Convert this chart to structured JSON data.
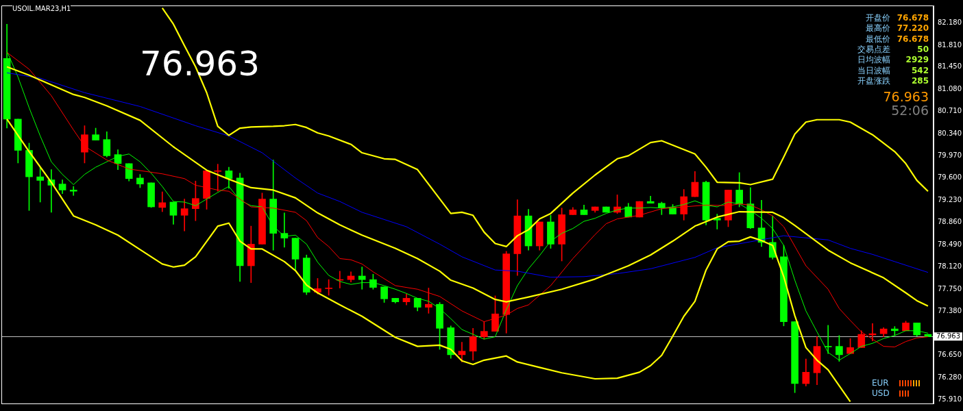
{
  "chart_data": {
    "type": "candlestick",
    "title": "USOIL.MAR23,H1",
    "legend": false,
    "tick_labels": "y",
    "categories": [
      null,
      null,
      null,
      null,
      null,
      null,
      null,
      null,
      null,
      null,
      null,
      null,
      null,
      null,
      null,
      null,
      null,
      null,
      null,
      null,
      null,
      null,
      null,
      null,
      null,
      null,
      null,
      null,
      null,
      null,
      null,
      null,
      null,
      null,
      null,
      null,
      null,
      null,
      null,
      null,
      null,
      null,
      null,
      null,
      null,
      null,
      null,
      null,
      null,
      null,
      null,
      null,
      null,
      null,
      null,
      null,
      null,
      null,
      null,
      null,
      null,
      null,
      null,
      null,
      null,
      null,
      null,
      null,
      null,
      null,
      null,
      null,
      null,
      null,
      null,
      null,
      null,
      null,
      null,
      null,
      null,
      null,
      null,
      null
    ],
    "ohlc": [
      [
        81.59,
        82.16,
        80.43,
        80.58
      ],
      [
        80.58,
        80.58,
        79.85,
        80.06
      ],
      [
        80.06,
        80.18,
        79.06,
        79.62
      ],
      [
        79.62,
        79.78,
        79.2,
        79.56
      ],
      [
        79.57,
        79.74,
        79.03,
        79.48
      ],
      [
        79.5,
        79.57,
        79.34,
        79.4
      ],
      [
        79.4,
        79.46,
        79.31,
        79.38
      ],
      [
        80.03,
        80.47,
        79.85,
        80.32
      ],
      [
        80.32,
        80.43,
        80.23,
        80.23
      ],
      [
        80.24,
        80.37,
        79.95,
        79.97
      ],
      [
        79.99,
        80.07,
        79.74,
        79.84
      ],
      [
        79.84,
        79.84,
        79.55,
        79.59
      ],
      [
        79.6,
        79.66,
        79.44,
        79.5
      ],
      [
        79.52,
        79.52,
        79.11,
        79.12
      ],
      [
        79.11,
        79.37,
        79.04,
        79.19
      ],
      [
        79.2,
        79.2,
        78.83,
        78.98
      ],
      [
        78.98,
        79.25,
        78.72,
        79.09
      ],
      [
        79.09,
        79.55,
        78.89,
        79.26
      ],
      [
        79.26,
        79.72,
        79.08,
        79.72
      ],
      [
        79.71,
        79.83,
        79.38,
        79.72
      ],
      [
        79.72,
        79.78,
        79.43,
        79.59
      ],
      [
        79.6,
        79.68,
        77.88,
        78.14
      ],
      [
        78.14,
        78.8,
        77.86,
        78.5
      ],
      [
        78.5,
        79.35,
        78.5,
        79.25
      ],
      [
        79.25,
        79.9,
        78.4,
        78.68
      ],
      [
        78.68,
        79.02,
        78.45,
        78.6
      ],
      [
        78.6,
        78.6,
        78.07,
        78.25
      ],
      [
        78.27,
        78.32,
        77.66,
        77.7
      ],
      [
        77.7,
        77.93,
        77.67,
        77.76
      ],
      [
        77.76,
        77.91,
        77.65,
        77.77
      ],
      [
        77.9,
        78.05,
        77.77,
        77.91
      ],
      [
        77.91,
        78.04,
        77.87,
        77.97
      ],
      [
        77.97,
        78.12,
        77.75,
        77.91
      ],
      [
        77.91,
        78.0,
        77.75,
        77.78
      ],
      [
        77.79,
        77.79,
        77.53,
        77.59
      ],
      [
        77.6,
        77.6,
        77.52,
        77.54
      ],
      [
        77.54,
        77.67,
        77.49,
        77.6
      ],
      [
        77.6,
        77.6,
        77.39,
        77.45
      ],
      [
        77.45,
        77.77,
        77.35,
        77.5
      ],
      [
        77.5,
        77.53,
        76.75,
        77.1
      ],
      [
        77.11,
        77.14,
        76.6,
        76.66
      ],
      [
        76.66,
        76.87,
        76.54,
        76.72
      ],
      [
        76.72,
        77.1,
        76.57,
        76.96
      ],
      [
        76.96,
        77.21,
        76.92,
        77.05
      ],
      [
        77.05,
        77.64,
        77.05,
        77.34
      ],
      [
        77.33,
        78.38,
        77.02,
        78.34
      ],
      [
        78.34,
        79.24,
        77.98,
        78.97
      ],
      [
        78.97,
        79.08,
        78.4,
        78.47
      ],
      [
        78.47,
        78.87,
        78.4,
        78.87
      ],
      [
        78.87,
        78.98,
        78.43,
        78.5
      ],
      [
        78.5,
        79.1,
        78.22,
        78.99
      ],
      [
        78.99,
        79.11,
        78.99,
        79.07
      ],
      [
        79.07,
        79.15,
        78.99,
        78.99
      ],
      [
        79.06,
        79.12,
        79.03,
        79.12
      ],
      [
        79.12,
        79.12,
        79.03,
        79.03
      ],
      [
        79.03,
        79.32,
        79.01,
        79.12
      ],
      [
        79.12,
        79.18,
        78.95,
        78.95
      ],
      [
        78.95,
        79.21,
        78.95,
        79.21
      ],
      [
        79.21,
        79.3,
        79.18,
        79.18
      ],
      [
        79.18,
        79.2,
        78.99,
        79.11
      ],
      [
        79.11,
        79.16,
        79.0,
        79.0
      ],
      [
        79.0,
        79.41,
        78.9,
        79.29
      ],
      [
        79.29,
        79.71,
        79.29,
        79.53
      ],
      [
        79.53,
        79.55,
        78.82,
        78.9
      ],
      [
        78.93,
        79.0,
        78.75,
        78.9
      ],
      [
        78.9,
        79.4,
        78.79,
        79.4
      ],
      [
        79.4,
        79.69,
        79.12,
        79.17
      ],
      [
        79.17,
        79.44,
        78.76,
        78.77
      ],
      [
        78.77,
        79.23,
        78.46,
        78.53
      ],
      [
        78.53,
        78.97,
        78.25,
        78.28
      ],
      [
        78.29,
        78.48,
        77.14,
        77.21
      ],
      [
        77.21,
        77.21,
        76.03,
        76.18
      ],
      [
        76.18,
        76.59,
        76.14,
        76.37
      ],
      [
        76.36,
        76.96,
        76.16,
        76.8
      ],
      [
        76.8,
        77.15,
        76.68,
        76.79
      ],
      [
        76.8,
        76.98,
        76.55,
        76.66
      ],
      [
        76.68,
        76.93,
        76.68,
        76.78
      ],
      [
        76.78,
        77.06,
        76.78,
        77.0
      ],
      [
        76.99,
        77.18,
        76.89,
        77.01
      ],
      [
        77.01,
        77.11,
        76.96,
        77.09
      ],
      [
        77.09,
        77.13,
        76.98,
        77.06
      ],
      [
        77.06,
        77.22,
        77.06,
        77.19
      ],
      [
        77.19,
        77.19,
        76.97,
        76.99
      ],
      [
        77.0,
        77.0,
        76.96,
        76.96
      ]
    ],
    "colors": [
      "#00ff00",
      "#00ff00",
      "#00ff00",
      "#00ff00",
      "#00ff00",
      "#00ff00",
      "#00ff00",
      "#ff0000",
      "#00ff00",
      "#00ff00",
      "#00ff00",
      "#00ff00",
      "#00ff00",
      "#00ff00",
      "#ff0000",
      "#00ff00",
      "#ff0000",
      "#ff0000",
      "#ff0000",
      "#ff0000",
      "#00ff00",
      "#00ff00",
      "#ff0000",
      "#ff0000",
      "#00ff00",
      "#00ff00",
      "#00ff00",
      "#00ff00",
      "#ff0000",
      "#ff0000",
      "#ff0000",
      "#ff0000",
      "#00ff00",
      "#00ff00",
      "#00ff00",
      "#00ff00",
      "#ff0000",
      "#00ff00",
      "#ff0000",
      "#00ff00",
      "#00ff00",
      "#ff0000",
      "#ff0000",
      "#ff0000",
      "#ff0000",
      "#ff0000",
      "#ff0000",
      "#00ff00",
      "#ff0000",
      "#00ff00",
      "#ff0000",
      "#ff0000",
      "#00ff00",
      "#ff0000",
      "#00ff00",
      "#ff0000",
      "#00ff00",
      "#ff0000",
      "#00ff00",
      "#00ff00",
      "#00ff00",
      "#ff0000",
      "#ff0000",
      "#00ff00",
      "#00ff00",
      "#ff0000",
      "#00ff00",
      "#00ff00",
      "#00ff00",
      "#00ff00",
      "#00ff00",
      "#00ff00",
      "#ff0000",
      "#ff0000",
      "#00ff00",
      "#00ff00",
      "#ff0000",
      "#ff0000",
      "#ff0000",
      "#ff0000",
      "#00ff00",
      "#ff0000",
      "#00ff00",
      "#00ff00"
    ],
    "series": [
      {
        "type": "line",
        "color": "#ffff00",
        "values": [
          null,
          null,
          null,
          null,
          null,
          null,
          null,
          null,
          null,
          null,
          null,
          null,
          null,
          null,
          82.43,
          82.16,
          81.8,
          81.45,
          81.02,
          80.46,
          80.31,
          80.43,
          80.45,
          null,
          80.46,
          80.47,
          80.49,
          80.44,
          80.35,
          80.3,
          null,
          80.16,
          80.02,
          null,
          79.92,
          79.91,
          null,
          79.74,
          null,
          null,
          79.01,
          79.03,
          78.98,
          78.7,
          78.51,
          78.46,
          78.64,
          78.74,
          78.92,
          79.01,
          null,
          79.35,
          null,
          79.65,
          null,
          79.92,
          79.97,
          null,
          80.19,
          80.22,
          null,
          null,
          80.0,
          79.78,
          79.53,
          null,
          79.52,
          79.49,
          null,
          79.58,
          79.95,
          80.33,
          80.53,
          80.57,
          null,
          80.57,
          80.53,
          null,
          80.32,
          null,
          80.04,
          79.84,
          79.56,
          79.38
        ]
      },
      {
        "type": "line",
        "color": "#ffff00",
        "values": [
          81.45,
          null,
          81.31,
          null,
          null,
          null,
          80.99,
          80.94,
          null,
          80.8,
          null,
          null,
          80.56,
          null,
          null,
          80.12,
          null,
          null,
          79.73,
          null,
          79.58,
          null,
          79.44,
          null,
          79.4,
          null,
          79.27,
          null,
          79.02,
          null,
          78.82,
          null,
          78.65,
          null,
          null,
          78.43,
          null,
          78.26,
          null,
          78.05,
          77.9,
          null,
          77.77,
          null,
          77.58,
          77.54,
          null,
          77.62,
          null,
          null,
          77.75,
          null,
          null,
          77.92,
          null,
          null,
          78.14,
          null,
          78.32,
          null,
          78.55,
          null,
          78.8,
          null,
          78.95,
          null,
          79.04,
          null,
          null,
          79.03,
          78.94,
          78.81,
          null,
          null,
          78.4,
          null,
          78.19,
          null,
          null,
          77.94,
          null,
          77.69,
          77.56,
          77.47
        ]
      },
      {
        "type": "line",
        "color": "#ffff00",
        "values": [
          80.58,
          null,
          80.04,
          null,
          79.53,
          null,
          78.97,
          null,
          78.82,
          null,
          78.65,
          null,
          78.41,
          null,
          78.17,
          78.12,
          78.15,
          78.29,
          null,
          78.8,
          78.85,
          78.55,
          78.42,
          78.42,
          null,
          78.21,
          78.06,
          77.82,
          77.69,
          null,
          77.49,
          null,
          77.3,
          null,
          null,
          76.95,
          null,
          76.8,
          null,
          76.82,
          76.75,
          76.56,
          76.5,
          76.57,
          null,
          76.64,
          76.54,
          null,
          76.45,
          null,
          76.36,
          null,
          null,
          76.26,
          null,
          76.27,
          null,
          76.37,
          76.48,
          76.65,
          76.97,
          77.3,
          77.55,
          78.07,
          78.42,
          78.54,
          78.55,
          78.62,
          78.56,
          78.48,
          77.96,
          77.31,
          76.78,
          76.57,
          76.41,
          null,
          75.88,
          null,
          null,
          null,
          null,
          null,
          null,
          null
        ]
      },
      {
        "type": "line",
        "color": "#0000ff",
        "values": [
          81.35,
          null,
          null,
          81.26,
          null,
          null,
          null,
          81.02,
          null,
          null,
          null,
          null,
          80.79,
          null,
          null,
          null,
          null,
          80.47,
          null,
          null,
          80.3,
          null,
          null,
          80.02,
          null,
          null,
          79.6,
          null,
          79.35,
          null,
          79.21,
          null,
          79.03,
          null,
          null,
          null,
          78.79,
          null,
          null,
          78.5,
          null,
          78.29,
          null,
          null,
          78.07,
          null,
          78.05,
          null,
          null,
          77.95,
          null,
          null,
          77.96,
          null,
          null,
          78.01,
          null,
          null,
          78.09,
          null,
          null,
          null,
          78.28,
          null,
          78.44,
          null,
          null,
          78.54,
          null,
          null,
          78.64,
          null,
          null,
          null,
          78.57,
          null,
          78.43,
          null,
          78.33,
          null,
          78.21,
          null,
          null,
          78.03
        ]
      },
      {
        "type": "line",
        "color": "#ff0000",
        "values": [
          81.69,
          null,
          81.41,
          null,
          80.97,
          null,
          80.4,
          80.13,
          null,
          79.9,
          null,
          79.75,
          null,
          null,
          79.67,
          null,
          79.59,
          79.48,
          null,
          79.4,
          79.38,
          null,
          79.12,
          null,
          79.1,
          null,
          79.03,
          78.89,
          78.61,
          78.46,
          78.26,
          78.24,
          78.17,
          78.04,
          null,
          77.81,
          null,
          77.75,
          null,
          77.63,
          null,
          77.39,
          null,
          77.21,
          null,
          77.32,
          77.43,
          77.49,
          null,
          77.81,
          null,
          78.26,
          null,
          78.66,
          78.84,
          78.92,
          null,
          78.98,
          null,
          79.09,
          null,
          79.12,
          null,
          79.15,
          null,
          79.14,
          79.17,
          79.15,
          79.07,
          78.97,
          78.79,
          null,
          78.14,
          null,
          77.75,
          77.43,
          77.23,
          77.04,
          null,
          76.8,
          76.79,
          76.88,
          76.94,
          76.96
        ]
      },
      {
        "type": "line",
        "color": "#00ff00",
        "values": [
          81.71,
          81.28,
          80.77,
          80.3,
          79.87,
          79.66,
          79.49,
          79.66,
          79.78,
          null,
          79.96,
          80.0,
          79.87,
          79.68,
          79.46,
          79.21,
          79.2,
          79.14,
          79.25,
          79.36,
          79.46,
          79.23,
          79.14,
          79.12,
          78.8,
          78.63,
          78.65,
          78.5,
          78.2,
          77.98,
          77.88,
          77.83,
          77.86,
          77.86,
          77.81,
          77.75,
          77.68,
          77.6,
          77.55,
          77.43,
          77.26,
          77.08,
          77.0,
          76.92,
          76.96,
          77.41,
          77.81,
          78.09,
          78.31,
          78.55,
          78.68,
          78.76,
          78.88,
          78.93,
          79.01,
          79.07,
          79.1,
          79.1,
          79.11,
          79.1,
          79.12,
          79.16,
          79.22,
          79.15,
          79.12,
          79.2,
          79.17,
          79.06,
          78.93,
          78.76,
          78.48,
          77.9,
          77.39,
          77.04,
          76.7,
          76.57,
          76.68,
          76.8,
          76.85,
          76.93,
          76.98,
          77.06,
          77.06,
          77.02
        ]
      }
    ],
    "ylim": [
      75.85,
      82.47
    ],
    "yticks": [
      {
        "value": 75.91,
        "label": "75.910"
      },
      {
        "value": 76.28,
        "label": "76.280"
      },
      {
        "value": 76.65,
        "label": "76.650"
      },
      {
        "value": 77.38,
        "label": "77.380"
      },
      {
        "value": 77.75,
        "label": "77.750"
      },
      {
        "value": 78.12,
        "label": "78.120"
      },
      {
        "value": 78.49,
        "label": "78.490"
      },
      {
        "value": 78.86,
        "label": "78.860"
      },
      {
        "value": 79.23,
        "label": "79.230"
      },
      {
        "value": 79.6,
        "label": "79.600"
      },
      {
        "value": 79.97,
        "label": "79.970"
      },
      {
        "value": 80.34,
        "label": "80.340"
      },
      {
        "value": 80.71,
        "label": "80.710"
      },
      {
        "value": 81.08,
        "label": "81.080"
      },
      {
        "value": 81.45,
        "label": "81.450"
      },
      {
        "value": 81.81,
        "label": "81.810"
      },
      {
        "value": 82.18,
        "label": "82.180"
      }
    ],
    "ref_lines": [
      {
        "axis": "y",
        "value": 76.963,
        "label": "76.963",
        "color": "#c0c0c0"
      }
    ],
    "annotations": [
      "76.963",
      "开盘价",
      "76.678",
      "最高价",
      "77.220",
      "最低价",
      "76.678",
      "交易点差",
      "50",
      "日均波幅",
      "2929",
      "当日波幅",
      "542",
      "开盘涨跌",
      "285",
      "76.963",
      "52:06",
      "EUR",
      "USD"
    ]
  }
}
